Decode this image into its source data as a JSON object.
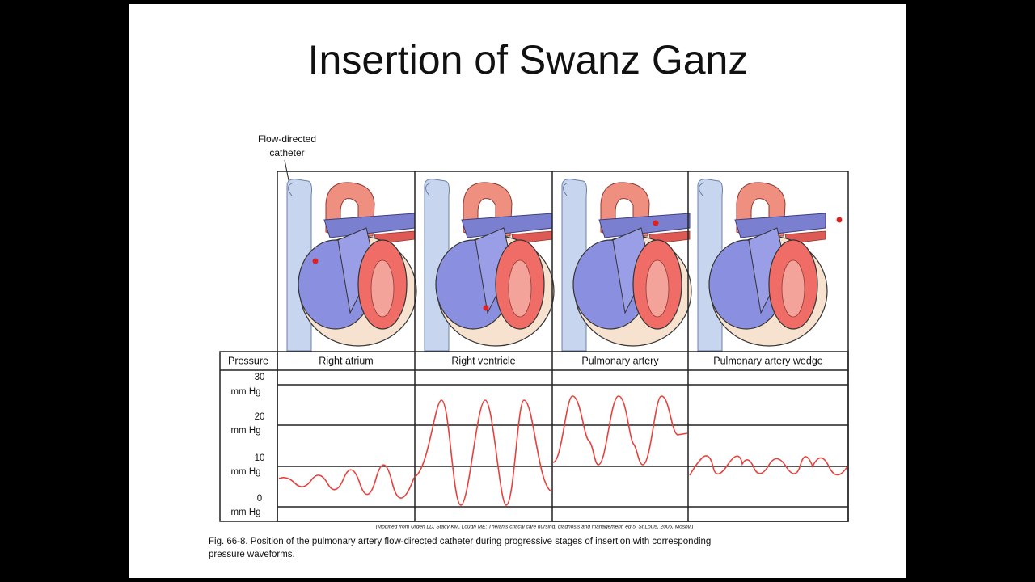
{
  "title": "Insertion of Swanz Ganz",
  "figure": {
    "callout": [
      "Flow-directed",
      "catheter"
    ],
    "row_header": "Pressure",
    "columns": [
      "Right atrium",
      "Right ventricle",
      "Pulmonary artery",
      "Pulmonary artery wedge"
    ],
    "pressure_labels": [
      {
        "value": "30",
        "unit": "mm Hg"
      },
      {
        "value": "20",
        "unit": "mm Hg"
      },
      {
        "value": "10",
        "unit": "mm Hg"
      },
      {
        "value": "0",
        "unit": "mm Hg"
      }
    ],
    "credit": "(Modified from Urden LD, Stacy KM, Lough ME: Thelan's critical care nursing: diagnosis and management, ed 5, St Louis, 2006, Mosby.)",
    "caption": [
      "Fig. 66-8. Position of the pulmonary artery flow-directed catheter during progressive stages of insertion with corresponding",
      "pressure waveforms."
    ]
  }
}
